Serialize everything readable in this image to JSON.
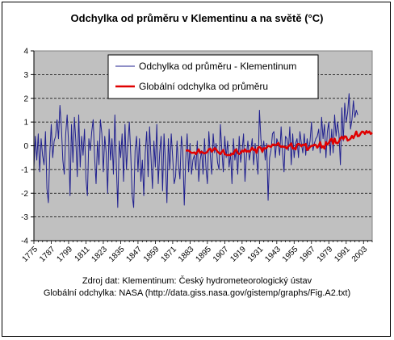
{
  "chart_data": {
    "type": "line",
    "title": "Odchylka od průměru v Klementinu a na světě (°C)",
    "ylim": [
      -4,
      4
    ],
    "yticks": [
      4,
      3,
      2,
      1,
      0,
      -1,
      -2,
      -3,
      -4
    ],
    "xlim": [
      1775,
      2009
    ],
    "xticks": [
      1775,
      1787,
      1799,
      1811,
      1823,
      1835,
      1847,
      1859,
      1871,
      1883,
      1895,
      1907,
      1919,
      1931,
      1943,
      1955,
      1967,
      1979,
      1991,
      2003
    ],
    "grid": true,
    "legend_position": "top-right",
    "series": [
      {
        "name": "Odchylka od průměru - Klementinum",
        "color": "#1f1f8f",
        "x_start": 1775,
        "values": [
          -0.9,
          0.4,
          -0.6,
          0.5,
          -1.1,
          0.3,
          -0.4,
          -0.8,
          0.6,
          -1.8,
          -2.4,
          -0.3,
          0.9,
          -0.5,
          0.2,
          0.4,
          1.1,
          0.3,
          1.7,
          0.8,
          -0.6,
          -1.2,
          0.5,
          1.3,
          0.1,
          -2.1,
          0.9,
          -0.7,
          1.2,
          0.2,
          -1.3,
          1.3,
          -0.9,
          0.4,
          -0.4,
          0.7,
          -1.4,
          -2.1,
          0.3,
          -0.2,
          0.6,
          1.1,
          -0.5,
          -1.6,
          0.2,
          -0.8,
          1.1,
          0.5,
          -1.1,
          0.4,
          -0.3,
          -2.0,
          0.7,
          -0.6,
          0.3,
          -1.2,
          1.3,
          -0.8,
          -2.6,
          0.2,
          -0.5,
          0.5,
          -1.5,
          0.9,
          -1.0,
          0.1,
          1.0,
          -0.4,
          -2.1,
          -2.6,
          -0.2,
          0.4,
          -1.1,
          0.3,
          -1.5,
          -0.6,
          -2.1,
          -0.3,
          0.6,
          -1.3,
          0.8,
          -0.5,
          -1.8,
          0.2,
          -0.9,
          0.9,
          -1.6,
          -0.3,
          0.4,
          -1.9,
          0.5,
          -0.7,
          -2.4,
          0.3,
          -1.0,
          0.5,
          -0.5,
          -1.6,
          -1.3,
          0.2,
          -0.8,
          -1.4,
          0.4,
          -0.2,
          -2.5,
          -0.6,
          0.5,
          -1.1,
          0.1,
          -1.2,
          -0.6,
          -0.4,
          -1.0,
          0.2,
          -1.5,
          -0.6,
          -0.2,
          -1.2,
          0.3,
          -0.9,
          -1.6,
          0.6,
          -0.4,
          -1.2,
          0.5,
          -0.3,
          0.1,
          -0.7,
          -1.0,
          0.9,
          -0.2,
          -1.1,
          0.4,
          -0.5,
          0.2,
          -0.9,
          -0.3,
          -1.6,
          0.3,
          -0.6,
          -0.1,
          -1.2,
          0.4,
          -0.7,
          -0.2,
          0.5,
          -1.5,
          -0.4,
          0.2,
          -0.6,
          -0.2,
          0.3,
          -0.8,
          0.1,
          -0.5,
          -1.2,
          1.5,
          0.3,
          -0.3,
          0.2,
          -0.6,
          0.1,
          -2.3,
          -0.5,
          -0.2,
          0.5,
          0.6,
          -0.5,
          0.3,
          0.1,
          -0.4,
          0.8,
          -0.3,
          -1.1,
          0.4,
          0.3,
          -0.2,
          0.8,
          -0.8,
          0.5,
          -0.5,
          0.1,
          0.3,
          -0.5,
          0.6,
          0.1,
          -0.3,
          0.5,
          -0.4,
          0.3,
          -0.2,
          0.2,
          1.0,
          -0.2,
          0.1,
          0.3,
          0.4,
          0.7,
          -0.3,
          1.2,
          0.3,
          0.9,
          -0.5,
          0.6,
          1.0,
          -0.4,
          0.7,
          -0.3,
          1.3,
          0.4,
          1.0,
          0.5,
          -0.8,
          1.6,
          0.2,
          1.8,
          1.0,
          1.4,
          2.2,
          0.7,
          1.1,
          1.9,
          1.2,
          1.5,
          1.3
        ]
      },
      {
        "name": "Globální odchylka od průměru",
        "color": "#e00000",
        "x_start": 1880,
        "values": [
          -0.2,
          -0.2,
          -0.2,
          -0.25,
          -0.3,
          -0.3,
          -0.28,
          -0.35,
          -0.25,
          -0.15,
          -0.3,
          -0.25,
          -0.3,
          -0.32,
          -0.3,
          -0.25,
          -0.15,
          -0.12,
          -0.25,
          -0.18,
          -0.1,
          -0.15,
          -0.25,
          -0.3,
          -0.35,
          -0.25,
          -0.18,
          -0.35,
          -0.38,
          -0.4,
          -0.38,
          -0.4,
          -0.33,
          -0.35,
          -0.2,
          -0.15,
          -0.3,
          -0.35,
          -0.3,
          -0.2,
          -0.25,
          -0.15,
          -0.25,
          -0.22,
          -0.25,
          -0.18,
          -0.08,
          -0.18,
          -0.15,
          -0.3,
          -0.08,
          -0.05,
          -0.1,
          -0.25,
          -0.1,
          -0.12,
          -0.08,
          0.0,
          -0.02,
          -0.05,
          0.05,
          0.05,
          0.02,
          0.05,
          0.12,
          0.0,
          -0.05,
          -0.02,
          -0.05,
          -0.05,
          -0.12,
          -0.02,
          0.02,
          0.1,
          -0.12,
          -0.1,
          -0.15,
          0.05,
          0.08,
          0.05,
          -0.02,
          0.05,
          0.03,
          0.08,
          -0.18,
          -0.12,
          -0.05,
          0.0,
          0.0,
          0.05,
          0.03,
          -0.08,
          0.0,
          0.15,
          -0.08,
          -0.02,
          -0.12,
          0.15,
          0.05,
          0.12,
          0.25,
          0.3,
          0.08,
          0.3,
          0.12,
          0.1,
          0.18,
          0.32,
          0.38,
          0.28,
          0.4,
          0.38,
          0.22,
          0.25,
          0.3,
          0.42,
          0.32,
          0.45,
          0.6,
          0.4,
          0.42,
          0.52,
          0.6,
          0.58,
          0.5,
          0.62,
          0.55,
          0.6,
          0.5,
          0.55
        ]
      }
    ]
  },
  "source_notes": [
    "Zdroj dat: Klementinum: Český hydrometeorologický ústav",
    "Globální odchylka: NASA (http://data.giss.nasa.gov/gistemp/graphs/Fig.A2.txt)"
  ]
}
